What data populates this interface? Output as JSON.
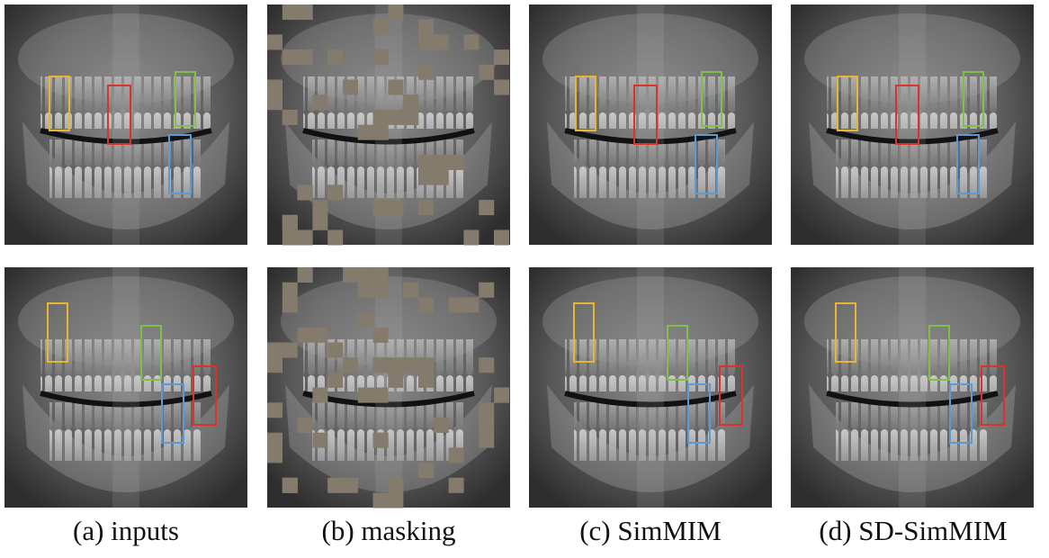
{
  "captions": [
    "(a) inputs",
    "(b) masking",
    "(c) SimMIM",
    "(d) SD-SimMIM"
  ]
}
